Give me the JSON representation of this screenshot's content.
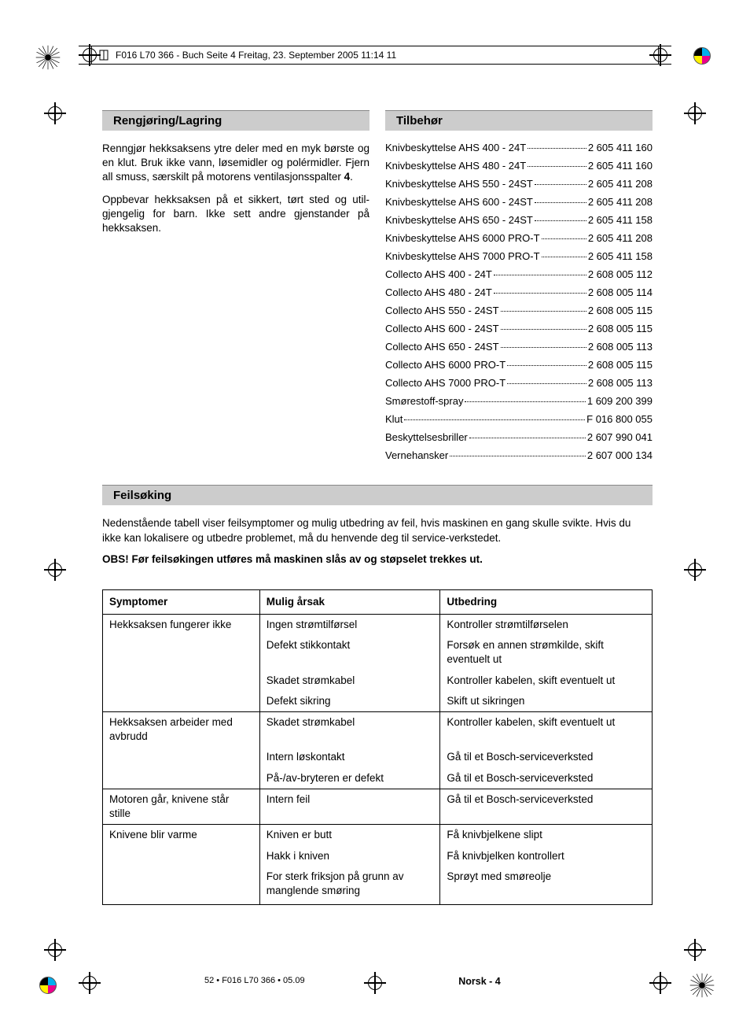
{
  "header_line": "F016 L70 366 - Buch  Seite 4  Freitag, 23. September 2005  11:14 11",
  "section1": {
    "title": "Rengjøring/Lagring",
    "p1": "Renngjør hekksaksens ytre deler med en myk bør­ste og en klut. Bruk ikke vann, løsemidler og polér­midler. Fjern all smuss, særskilt på motorens venti­lasjonsspalter ",
    "p1_bold": "4",
    "p1_after": ".",
    "p2": "Oppbevar hekksaksen på et sikkert, tørt sted og util­gjengelig for barn. Ikke sett andre gjenstander på hekksaksen."
  },
  "section2": {
    "title": "Tilbehør",
    "items": [
      {
        "name": "Knivbeskyttelse AHS 400 - 24T",
        "num": "2 605 411 160"
      },
      {
        "name": "Knivbeskyttelse AHS 480 - 24T",
        "num": "2 605 411 160"
      },
      {
        "name": "Knivbeskyttelse AHS 550 - 24ST",
        "num": "2 605 411 208"
      },
      {
        "name": "Knivbeskyttelse AHS 600 - 24ST",
        "num": "2 605 411 208"
      },
      {
        "name": "Knivbeskyttelse AHS 650 - 24ST",
        "num": "2 605 411 158"
      },
      {
        "name": "Knivbeskyttelse AHS 6000 PRO-T",
        "num": "2 605 411 208"
      },
      {
        "name": "Knivbeskyttelse AHS 7000 PRO-T",
        "num": "2 605 411 158"
      },
      {
        "name": "Collecto AHS 400 - 24T",
        "num": "2 608 005 112"
      },
      {
        "name": "Collecto AHS 480 - 24T",
        "num": "2 608 005 114"
      },
      {
        "name": "Collecto AHS 550 - 24ST",
        "num": "2 608 005 115"
      },
      {
        "name": "Collecto AHS 600 - 24ST",
        "num": "2 608 005 115"
      },
      {
        "name": "Collecto AHS 650 - 24ST",
        "num": "2 608 005 113"
      },
      {
        "name": "Collecto AHS 6000 PRO-T",
        "num": "2 608 005 115"
      },
      {
        "name": "Collecto AHS 7000 PRO-T",
        "num": "2 608 005 113"
      },
      {
        "name": "Smørestoff-spray",
        "num": "1 609 200 399"
      },
      {
        "name": "Klut",
        "num": "F 016 800 055"
      },
      {
        "name": "Beskyttelsesbriller",
        "num": "2 607 990 041"
      },
      {
        "name": "Vernehansker",
        "num": "2 607 000 134"
      }
    ]
  },
  "section3": {
    "title": "Feilsøking",
    "intro": "Nedenstående tabell viser feilsymptomer og mulig utbedring av feil, hvis maskinen en gang skulle svikte. Hvis du ikke kan lokalisere og utbedre problemet, må du henvende deg til service-verkstedet.",
    "warning": "OBS! Før feilsøkingen utføres må maskinen slås av og støpselet trekkes ut."
  },
  "table": {
    "headers": {
      "c1": "Symptomer",
      "c2": "Mulig årsak",
      "c3": "Utbedring"
    },
    "groups": [
      {
        "symptom": "Hekksaksen fungerer ikke",
        "rows": [
          {
            "cause": "Ingen strømtilførsel",
            "fix": "Kontroller strømtilførselen"
          },
          {
            "cause": "Defekt stikkontakt",
            "fix": "Forsøk en annen strømkilde, skift eventuelt ut"
          },
          {
            "cause": "Skadet strømkabel",
            "fix": "Kontroller kabelen, skift eventuelt ut"
          },
          {
            "cause": "Defekt sikring",
            "fix": "Skift ut sikringen"
          }
        ]
      },
      {
        "symptom": "Hekksaksen arbeider med avbrudd",
        "rows": [
          {
            "cause": "Skadet strømkabel",
            "fix": "Kontroller kabelen, skift eventuelt ut"
          },
          {
            "cause": "Intern løskontakt",
            "fix": "Gå til et Bosch-serviceverksted"
          },
          {
            "cause": "På-/av-bryteren er defekt",
            "fix": "Gå til et Bosch-serviceverksted"
          }
        ]
      },
      {
        "symptom": "Motoren går, knivene står stille",
        "rows": [
          {
            "cause": "Intern feil",
            "fix": "Gå til et Bosch-serviceverksted"
          }
        ]
      },
      {
        "symptom": "Knivene blir varme",
        "rows": [
          {
            "cause": "Kniven er butt",
            "fix": "Få knivbjelkene slipt"
          },
          {
            "cause": "Hakk i kniven",
            "fix": "Få knivbjelken kontrollert"
          },
          {
            "cause": "For sterk friksjon på grunn av manglende smøring",
            "fix": "Sprøyt med smøreolje"
          }
        ]
      }
    ]
  },
  "footer": {
    "left": "52 • F016 L70 366 • 05.09",
    "center": "Norsk - 4"
  },
  "colors": {
    "header_bg": "#cccccc"
  }
}
